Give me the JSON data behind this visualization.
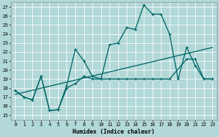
{
  "xlabel": "Humidex (Indice chaleur)",
  "background_color": "#b2d8d8",
  "grid_color": "#ffffff",
  "line_color": "#006666",
  "xlim": [
    -0.5,
    23.5
  ],
  "ylim": [
    14.5,
    27.5
  ],
  "xticks": [
    0,
    1,
    2,
    3,
    4,
    5,
    6,
    7,
    8,
    9,
    10,
    11,
    12,
    13,
    14,
    15,
    16,
    17,
    18,
    19,
    20,
    21,
    22,
    23
  ],
  "yticks": [
    15,
    16,
    17,
    18,
    19,
    20,
    21,
    22,
    23,
    24,
    25,
    26,
    27
  ],
  "line1_x": [
    0,
    1,
    2,
    3,
    4,
    5,
    6,
    7,
    8,
    9,
    10,
    11,
    12,
    13,
    14,
    15,
    16,
    17,
    18,
    19,
    20,
    21,
    22,
    23
  ],
  "line1_y": [
    17.7,
    17.0,
    16.7,
    19.3,
    15.5,
    15.6,
    18.3,
    22.3,
    21.0,
    19.3,
    19.0,
    22.8,
    23.0,
    24.7,
    24.5,
    27.2,
    26.2,
    26.2,
    24.0,
    19.0,
    22.5,
    20.5,
    19.0,
    19.0
  ],
  "line2_x": [
    0,
    1,
    2,
    3,
    4,
    5,
    6,
    7,
    8,
    9,
    10,
    11,
    12,
    13,
    14,
    15,
    16,
    17,
    18,
    20,
    21,
    22,
    23
  ],
  "line2_y": [
    17.7,
    17.0,
    16.7,
    19.3,
    15.5,
    15.6,
    18.0,
    18.5,
    19.3,
    19.0,
    19.0,
    19.0,
    19.0,
    19.0,
    19.0,
    19.0,
    19.0,
    19.0,
    19.0,
    21.2,
    21.2,
    19.0,
    19.0
  ],
  "line3_x": [
    0,
    23
  ],
  "line3_y": [
    17.3,
    22.5
  ]
}
